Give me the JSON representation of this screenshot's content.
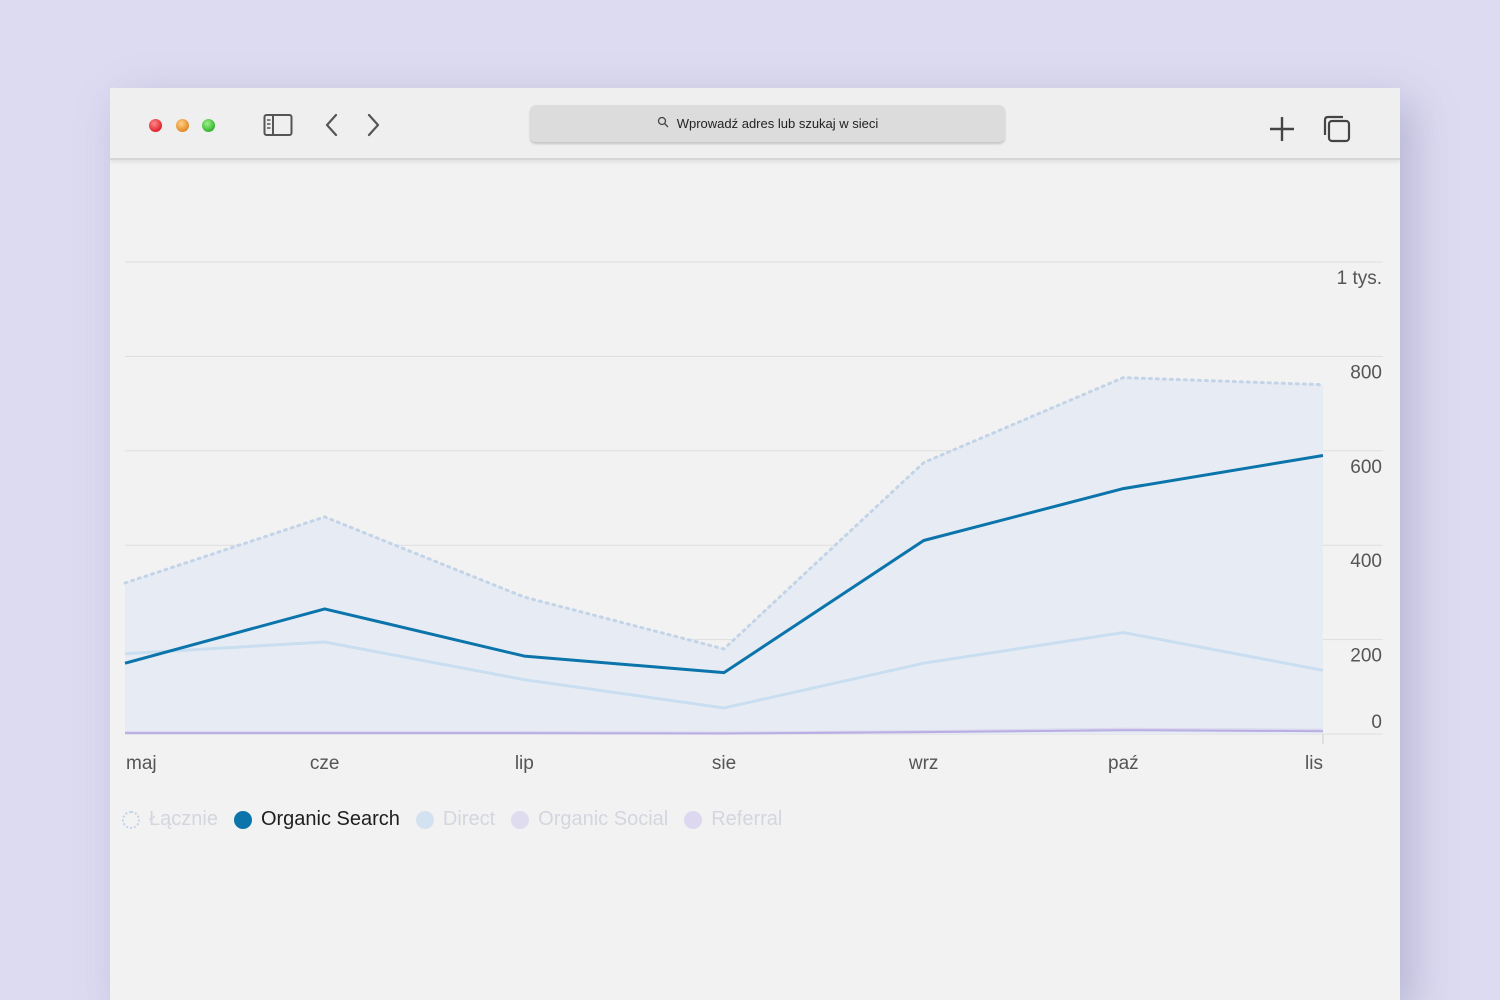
{
  "browser": {
    "address_placeholder": "Wprowadź adres lub szukaj w sieci"
  },
  "colors": {
    "organic_search": "#0b74ab",
    "direct": "#c9def0",
    "total_dotted": "#c3d4e8",
    "area_fill": "#e6ebf3",
    "organic_social": "#d9d6ee",
    "referral": "#b9aee4"
  },
  "chart_data": {
    "type": "line",
    "categories": [
      "maj",
      "cze",
      "lip",
      "sie",
      "wrz",
      "paź",
      "lis"
    ],
    "y_ticks": [
      {
        "value": 0,
        "label": "0"
      },
      {
        "value": 200,
        "label": "200"
      },
      {
        "value": 400,
        "label": "400"
      },
      {
        "value": 600,
        "label": "600"
      },
      {
        "value": 800,
        "label": "800"
      },
      {
        "value": 1000,
        "label": "1 tys."
      }
    ],
    "ylim": [
      0,
      1000
    ],
    "grid": true,
    "legend_position": "bottom-left",
    "series": [
      {
        "name": "Łącznie",
        "key": "total",
        "values": [
          320,
          460,
          290,
          180,
          575,
          755,
          740
        ],
        "style": "dotted-area",
        "active": false
      },
      {
        "name": "Organic Search",
        "key": "organic_search",
        "values": [
          150,
          265,
          165,
          130,
          410,
          520,
          590
        ],
        "style": "line",
        "active": true
      },
      {
        "name": "Direct",
        "key": "direct",
        "values": [
          170,
          195,
          115,
          55,
          150,
          215,
          135
        ],
        "style": "line",
        "active": false
      },
      {
        "name": "Organic Social",
        "key": "organic_social",
        "values": [
          3,
          3,
          3,
          2,
          5,
          10,
          8
        ],
        "style": "line",
        "active": false
      },
      {
        "name": "Referral",
        "key": "referral",
        "values": [
          2,
          2,
          2,
          1,
          4,
          8,
          6
        ],
        "style": "line",
        "active": false
      }
    ]
  }
}
